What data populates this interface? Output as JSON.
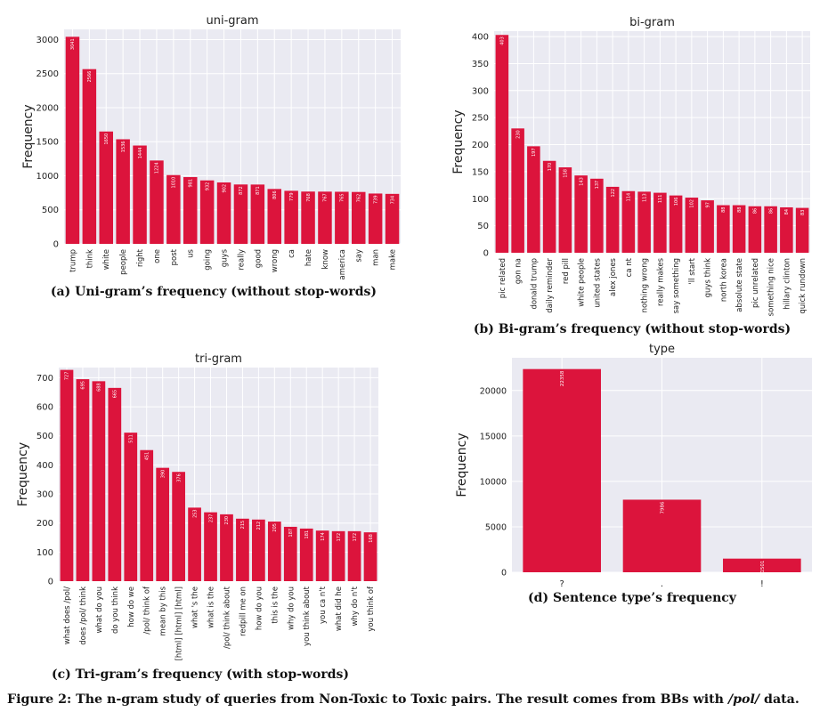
{
  "captions": {
    "a": "(a) Uni-gram’s frequency (without stop-words)",
    "b": "(b) Bi-gram’s frequency (without stop-words)",
    "c": "(c) Tri-gram’s frequency (with stop-words)",
    "d": "(d) Sentence type’s frequency",
    "figure_prefix": "Figure 2: The n-gram study of queries from Non-Toxic to Toxic pairs. The result comes from BBs with ",
    "figure_italic": "/pol/",
    "figure_suffix": " data."
  },
  "colors": {
    "bar": "#dc143c",
    "plot_bg": "#eaeaf2",
    "grid": "#ffffff"
  },
  "chart_data": [
    {
      "id": "unigram",
      "type": "bar",
      "title": "uni-gram",
      "xlabel": "",
      "ylabel": "Frequency",
      "ylim": [
        0,
        3150
      ],
      "yticks": [
        0,
        500,
        1000,
        1500,
        2000,
        2500,
        3000
      ],
      "categories": [
        "trump",
        "think",
        "white",
        "people",
        "right",
        "one",
        "post",
        "us",
        "going",
        "guys",
        "really",
        "good",
        "wrong",
        "ca",
        "hate",
        "know",
        "america",
        "say",
        "man",
        "make"
      ],
      "values": [
        3041,
        2566,
        1650,
        1536,
        1444,
        1224,
        1010,
        981,
        932,
        902,
        872,
        871,
        806,
        779,
        768,
        767,
        765,
        762,
        739,
        734
      ],
      "bar_labels": [
        "3041",
        "2566",
        "1650",
        "1536",
        "1444",
        "1224",
        "1010",
        "981",
        "932",
        "902",
        "872",
        "871",
        "806",
        "779",
        "768",
        "767",
        "765",
        "762",
        "739",
        "734"
      ]
    },
    {
      "id": "bigram",
      "type": "bar",
      "title": "bi-gram",
      "xlabel": "",
      "ylabel": "Frequency",
      "ylim": [
        0,
        410
      ],
      "yticks": [
        0,
        50,
        100,
        150,
        200,
        250,
        300,
        350,
        400
      ],
      "categories": [
        "pic related",
        "gon na",
        "donald trump",
        "daily reminder",
        "red pill",
        "white people",
        "united states",
        "alex jones",
        "ca nt",
        "nothing wrong",
        "really makes",
        "say something",
        "'ll start",
        "guys think",
        "north korea",
        "absolute state",
        "pic unrelated",
        "something nice",
        "hillary clinton",
        "quick rundown"
      ],
      "values": [
        403,
        230,
        197,
        170,
        158,
        143,
        137,
        122,
        114,
        113,
        111,
        106,
        102,
        97,
        88,
        88,
        86,
        86,
        84,
        83
      ],
      "bar_labels": [
        "403",
        "230",
        "197",
        "170",
        "158",
        "143",
        "137",
        "122",
        "114",
        "113",
        "111",
        "106",
        "102",
        "97",
        "88",
        "88",
        "86",
        "86",
        "84",
        "83"
      ]
    },
    {
      "id": "trigram",
      "type": "bar",
      "title": "tri-gram",
      "xlabel": "",
      "ylabel": "Frequency",
      "ylim": [
        0,
        735
      ],
      "yticks": [
        0,
        100,
        200,
        300,
        400,
        500,
        600,
        700
      ],
      "categories": [
        "what does /pol/",
        "does /pol/ think",
        "what do you",
        "do you think",
        "how do we",
        "/pol/ think of",
        "mean by this",
        "[html] [html] [html]",
        "what 's the",
        "what is the",
        "/pol/ think about",
        "redpill me on",
        "how do you",
        "this is the",
        "why do you",
        "you think about",
        "you ca n't",
        "what did he",
        "why do n't",
        "you think of"
      ],
      "values": [
        727,
        695,
        688,
        665,
        511,
        451,
        390,
        376,
        253,
        237,
        230,
        215,
        212,
        205,
        187,
        181,
        174,
        172,
        172,
        168
      ],
      "bar_labels": [
        "727",
        "695",
        "688",
        "665",
        "511",
        "451",
        "390",
        "376",
        "253",
        "237",
        "230",
        "215",
        "212",
        "205",
        "187",
        "181",
        "174",
        "172",
        "172",
        "168"
      ]
    },
    {
      "id": "type",
      "type": "bar",
      "title": "type",
      "xlabel": "",
      "ylabel": "Frequency",
      "ylim": [
        0,
        23600
      ],
      "yticks": [
        0,
        5000,
        10000,
        15000,
        20000
      ],
      "categories": [
        "?",
        ".",
        "!"
      ],
      "values": [
        22358,
        7986,
        1501
      ],
      "bar_labels": [
        "22358",
        "7986",
        "1501"
      ]
    }
  ]
}
